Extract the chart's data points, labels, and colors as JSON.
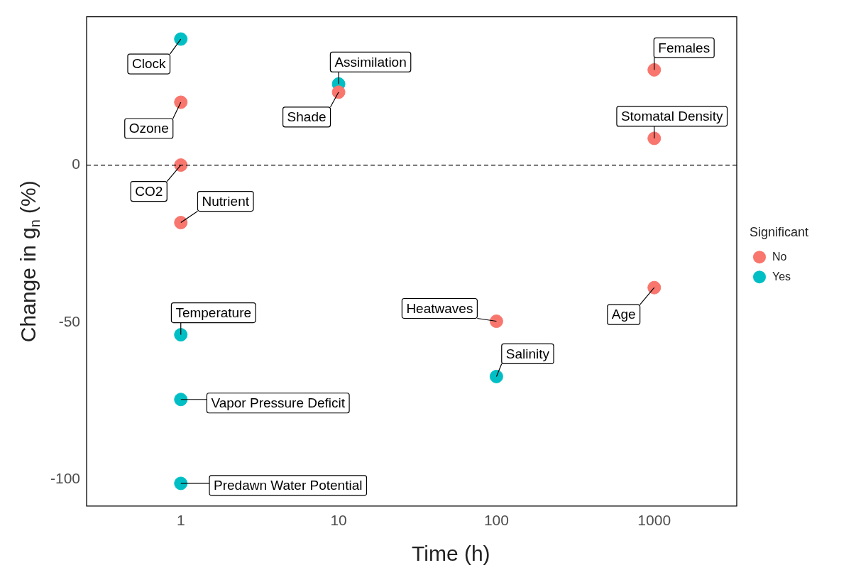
{
  "chart_data": {
    "type": "scatter",
    "xlabel": "Time (h)",
    "ylabel": "Change in $_{}$g$_{n}$ (%)",
    "legend_title": "Significant",
    "legend": "right",
    "log": "x",
    "grid": false,
    "marker": "circle",
    "xlim": [
      0.253,
      3334
    ],
    "xticks": [
      1,
      10,
      100,
      1000
    ],
    "ylim": [
      -108.5,
      47.2
    ],
    "yticks": [
      -100,
      -50,
      0
    ],
    "series": [
      {
        "name": "No",
        "color": "#f8766d",
        "x": [
          1,
          1,
          1,
          10,
          100,
          1000,
          1000,
          1000
        ],
        "values": [
          20,
          0,
          -18.3,
          23.2,
          -49.7,
          30.3,
          8.5,
          -39
        ]
      },
      {
        "name": "Yes",
        "color": "#00bfc4",
        "x": [
          1,
          1,
          1,
          1,
          10,
          100
        ],
        "values": [
          40.1,
          -54,
          -74.6,
          -101.3,
          25.8,
          -67.3
        ]
      }
    ],
    "ref_lines": [
      {
        "axis": "y",
        "value": 0,
        "line_style": "dashed",
        "color": "#000000"
      }
    ],
    "annotations": [
      {
        "text": "Clock",
        "x": 1,
        "y": 40.1
      },
      {
        "text": "Ozone",
        "x": 1,
        "y": 20
      },
      {
        "text": "CO2",
        "x": 1,
        "y": 0
      },
      {
        "text": "Nutrient",
        "x": 1,
        "y": -18.3
      },
      {
        "text": "Temperature",
        "x": 1,
        "y": -54
      },
      {
        "text": "Vapor Pressure Deficit",
        "x": 1,
        "y": -74.6
      },
      {
        "text": "Predawn Water Potential",
        "x": 1,
        "y": -101.3
      },
      {
        "text": "Assimilation",
        "x": 10,
        "y": 25.8
      },
      {
        "text": "Shade",
        "x": 10,
        "y": 23.2
      },
      {
        "text": "Heatwaves",
        "x": 100,
        "y": -49.7
      },
      {
        "text": "Salinity",
        "x": 100,
        "y": -67.3
      },
      {
        "text": "Females",
        "x": 1000,
        "y": 30.3
      },
      {
        "text": "Stomatal Density",
        "x": 1000,
        "y": 8.5
      },
      {
        "text": "Age",
        "x": 1000,
        "y": -39
      }
    ]
  }
}
